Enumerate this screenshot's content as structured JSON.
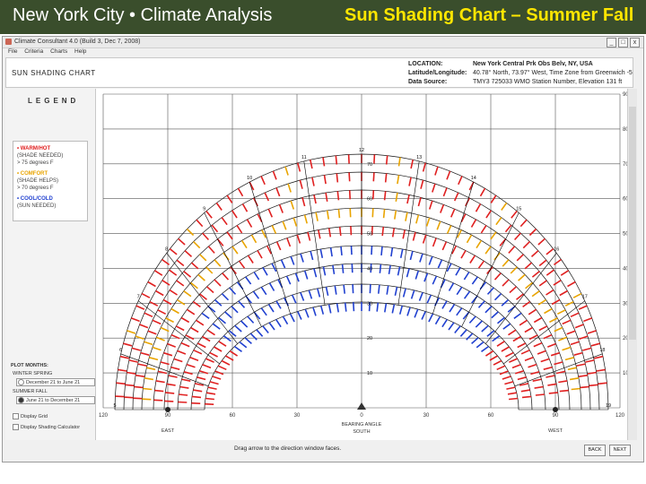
{
  "slide": {
    "title_left": "New York City • Climate Analysis",
    "title_right": "Sun Shading Chart – Summer Fall"
  },
  "window": {
    "title": "Climate Consultant 4.0 (Build 3, Dec 7, 2008)",
    "controls": [
      "_",
      "□",
      "x"
    ]
  },
  "menu": [
    "File",
    "Criteria",
    "Charts",
    "Help"
  ],
  "header": {
    "chart_name": "SUN SHADING CHART",
    "location_label": "LOCATION:",
    "location_value": "New York Central Prk Obs Belv, NY, USA",
    "latlong_label": "Latitude/Longitude:",
    "latlong_value": "40.78° North, 73.97° West, Time Zone from Greenwich -5",
    "source_label": "Data Source:",
    "source_value": "TMY3      725033 WMO Station Number, Elevation 131 ft"
  },
  "legend": {
    "title": "LEGEND",
    "items": [
      {
        "label": "WARM/HOT",
        "sub1": "(SHADE NEEDED)",
        "sub2": "> 75 degrees F",
        "color": "#e02020"
      },
      {
        "label": "COMFORT",
        "sub1": "(SHADE HELPS)",
        "sub2": "> 70 degrees F",
        "color": "#e9a400"
      },
      {
        "label": "COOL/COLD",
        "sub1": "(SUN NEEDED)",
        "sub2": "",
        "color": "#2040d0"
      }
    ]
  },
  "plot": {
    "heading": "PLOT MONTHS:",
    "winter_spring": "WINTER SPRING",
    "opt1": "December 21 to June 21",
    "summer_fall": "SUMMER FALL",
    "opt2": "June 21 to December 21",
    "display_grid": "Display Grid",
    "display_shading": "Display Shading Calculator"
  },
  "chart": {
    "alt_labels": [
      "90",
      "80",
      "70",
      "60",
      "50",
      "40",
      "30",
      "20",
      "10"
    ],
    "az_labels": [
      "120",
      "90",
      "60",
      "30",
      "0",
      "30",
      "60",
      "90",
      "120"
    ],
    "hour_labels": [
      "5",
      "6",
      "7",
      "8",
      "9",
      "10",
      "11",
      "12",
      "13",
      "14",
      "15",
      "16",
      "17",
      "18",
      "19"
    ],
    "center_alt": [
      "70",
      "60",
      "50",
      "40",
      "30",
      "20",
      "10"
    ],
    "east_label": "EAST",
    "west_label": "WEST",
    "south_label": "SOUTH",
    "bearing_label": "BEARING ANGLE",
    "colors": {
      "hot": "#e02020",
      "comfort": "#e9a400",
      "cold": "#2040d0"
    }
  },
  "footer": {
    "hint": "Drag arrow to the direction window faces.",
    "back": "BACK",
    "next": "NEXT"
  }
}
